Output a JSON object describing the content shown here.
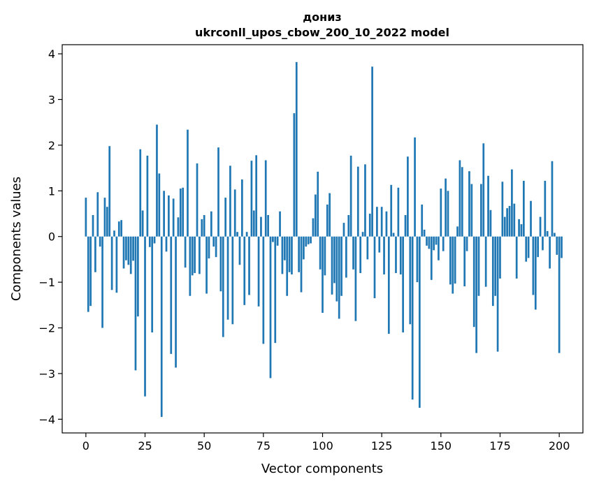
{
  "chart_data": {
    "type": "bar",
    "title": "дониз",
    "subtitle": "ukrconll_upos_cbow_200_10_2022 model",
    "xlabel": "Vector components",
    "ylabel": "Components values",
    "xlim": [
      -10,
      210
    ],
    "ylim": [
      -4.3,
      4.2
    ],
    "xticks": [
      0,
      25,
      50,
      75,
      100,
      125,
      150,
      175,
      200
    ],
    "yticks": [
      -4,
      -3,
      -2,
      -1,
      0,
      1,
      2,
      3,
      4
    ],
    "grid": false,
    "legend": "none",
    "bar_color": "#1f77b4",
    "values": [
      0.85,
      -1.65,
      -1.52,
      0.47,
      -0.78,
      0.97,
      -0.22,
      -2.0,
      0.85,
      0.65,
      1.98,
      -1.17,
      0.13,
      -1.23,
      0.33,
      0.36,
      -0.7,
      -0.52,
      -0.62,
      -0.82,
      -0.53,
      -2.93,
      -1.75,
      1.91,
      0.57,
      -3.5,
      1.77,
      -0.23,
      -2.1,
      -0.15,
      2.45,
      1.38,
      -3.95,
      1.0,
      -0.33,
      0.9,
      -2.57,
      0.83,
      -2.87,
      0.42,
      1.05,
      1.07,
      -0.68,
      2.34,
      -1.3,
      -0.85,
      -0.8,
      1.6,
      -0.82,
      0.38,
      0.47,
      -1.25,
      -0.48,
      0.55,
      -0.22,
      -0.45,
      1.95,
      -1.2,
      -2.2,
      0.85,
      -1.82,
      1.55,
      -1.92,
      1.03,
      0.1,
      -0.62,
      1.25,
      -1.5,
      0.1,
      -1.28,
      1.66,
      0.57,
      1.78,
      -1.53,
      0.43,
      -2.35,
      1.67,
      0.47,
      -3.1,
      -0.12,
      -2.33,
      -0.2,
      0.55,
      -0.82,
      -0.52,
      -1.3,
      -0.78,
      -0.83,
      2.7,
      3.82,
      -0.78,
      -1.22,
      -0.5,
      -0.22,
      -0.17,
      -0.15,
      0.4,
      0.92,
      1.42,
      -0.72,
      -1.67,
      -0.85,
      0.7,
      0.95,
      -1.27,
      -1.02,
      -1.42,
      -1.8,
      -1.3,
      0.3,
      -0.9,
      0.47,
      1.77,
      -0.72,
      -1.85,
      1.53,
      -0.8,
      0.1,
      1.58,
      -0.5,
      0.5,
      3.72,
      -1.35,
      0.65,
      -0.35,
      0.65,
      -0.83,
      0.55,
      -2.13,
      1.13,
      0.08,
      -0.8,
      1.07,
      -0.83,
      -2.1,
      0.47,
      1.75,
      -1.92,
      -3.57,
      2.17,
      -1.0,
      -3.75,
      0.7,
      0.15,
      -0.2,
      -0.27,
      -0.95,
      -0.3,
      -0.18,
      -0.52,
      1.05,
      -0.32,
      1.27,
      1.0,
      -1.05,
      -1.25,
      -1.03,
      0.22,
      1.67,
      1.52,
      -1.09,
      -0.32,
      1.43,
      1.15,
      -1.98,
      -2.55,
      -1.3,
      1.15,
      2.04,
      -1.1,
      1.33,
      0.58,
      -1.52,
      -1.3,
      -2.52,
      -0.92,
      1.2,
      0.43,
      0.62,
      0.67,
      1.47,
      0.72,
      -0.92,
      0.38,
      0.27,
      1.22,
      -0.55,
      -0.47,
      0.78,
      -1.28,
      -1.6,
      -0.45,
      0.43,
      -0.3,
      1.22,
      0.12,
      -0.7,
      1.65,
      0.08,
      -0.4,
      -2.55,
      -0.47
    ]
  }
}
